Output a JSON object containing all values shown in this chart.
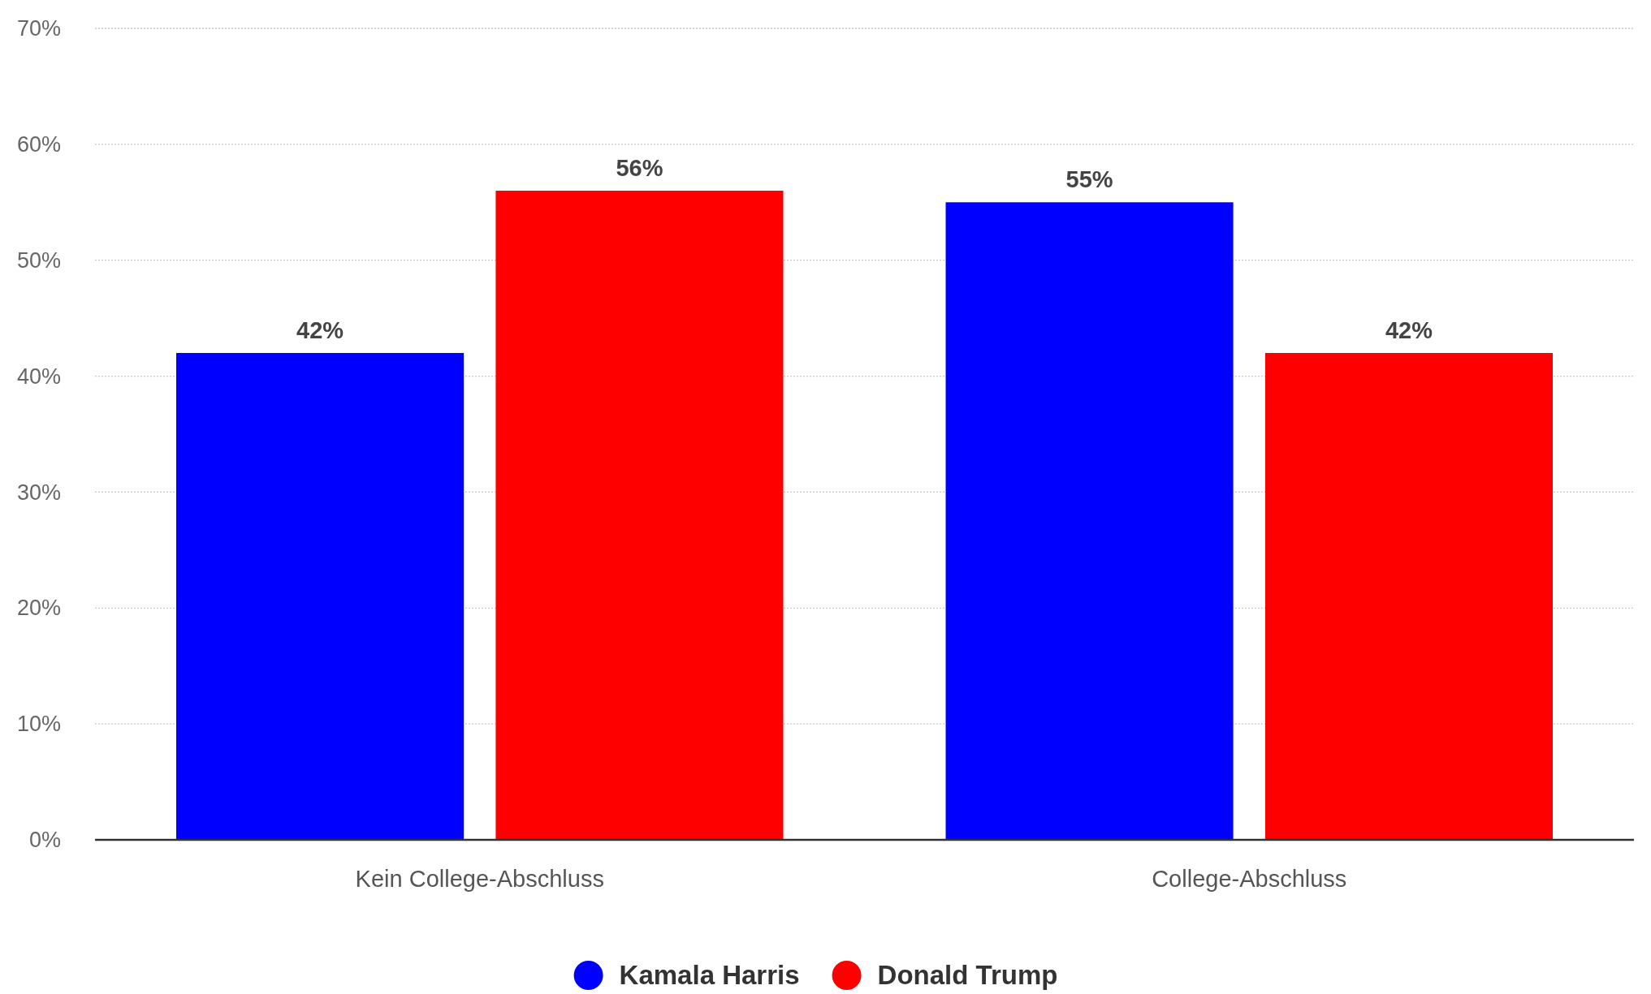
{
  "chart_data": {
    "type": "bar",
    "categories": [
      "Kein College-Abschluss",
      "College-Abschluss"
    ],
    "series": [
      {
        "name": "Kamala Harris",
        "color": "#0000ff",
        "values": [
          42,
          55
        ]
      },
      {
        "name": "Donald Trump",
        "color": "#ff0000",
        "values": [
          56,
          42
        ]
      }
    ],
    "ylim": [
      0,
      70
    ],
    "yticks": [
      {
        "value": 0,
        "label": "0%"
      },
      {
        "value": 10,
        "label": "10%"
      },
      {
        "value": 20,
        "label": "20%"
      },
      {
        "value": 30,
        "label": "30%"
      },
      {
        "value": 40,
        "label": "40%"
      },
      {
        "value": 50,
        "label": "50%"
      },
      {
        "value": 60,
        "label": "60%"
      },
      {
        "value": 70,
        "label": "70%"
      }
    ],
    "value_labels": [
      [
        "42%",
        "55%"
      ],
      [
        "56%",
        "42%"
      ]
    ],
    "grid": "y",
    "legend": "bottom"
  }
}
